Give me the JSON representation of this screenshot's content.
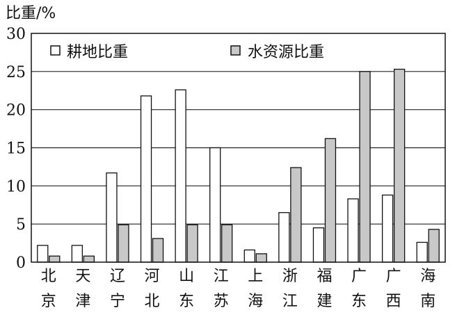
{
  "chart_data": {
    "type": "bar",
    "ylabel": "比重/%",
    "ylim": [
      0,
      30
    ],
    "yticks": [
      0,
      5,
      10,
      15,
      20,
      25,
      30
    ],
    "grid": true,
    "legend_position": "top",
    "categories": [
      [
        "北",
        "京"
      ],
      [
        "天",
        "津"
      ],
      [
        "辽",
        "宁"
      ],
      [
        "河",
        "北"
      ],
      [
        "山",
        "东"
      ],
      [
        "江",
        "苏"
      ],
      [
        "上",
        "海"
      ],
      [
        "浙",
        "江"
      ],
      [
        "福",
        "建"
      ],
      [
        "广",
        "东"
      ],
      [
        "广",
        "西"
      ],
      [
        "海",
        "南"
      ]
    ],
    "series": [
      {
        "name": "耕地比重",
        "color": "#ffffff",
        "values": [
          2.2,
          2.2,
          11.7,
          21.8,
          22.6,
          15.0,
          1.6,
          6.5,
          4.5,
          8.3,
          8.8,
          2.6
        ]
      },
      {
        "name": "水资源比重",
        "color": "#c8c8c8",
        "values": [
          0.8,
          0.8,
          4.9,
          3.1,
          4.9,
          4.9,
          1.1,
          12.4,
          16.2,
          25.0,
          25.3,
          4.3
        ]
      }
    ]
  }
}
